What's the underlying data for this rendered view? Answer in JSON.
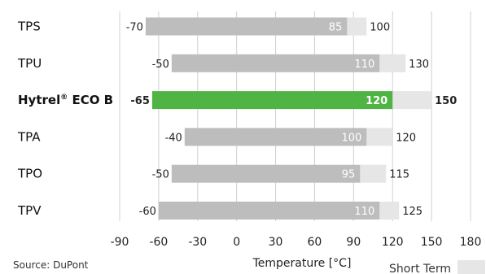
{
  "chart_data": {
    "type": "bar",
    "categories": [
      "TPS",
      "TPU",
      "Hytrel® ECO B",
      "TPA",
      "TPO",
      "TPV"
    ],
    "highlight": "Hytrel® ECO B",
    "series": [
      {
        "values_min": [
          -70,
          -50,
          -65,
          -40,
          -50,
          -60
        ]
      },
      {
        "values_max_long": [
          85,
          110,
          120,
          100,
          95,
          110
        ]
      },
      {
        "name": "Short Term",
        "values_max_short": [
          100,
          130,
          150,
          120,
          115,
          125
        ]
      }
    ],
    "xlabel": "Temperature [°C]",
    "xlim": [
      -90,
      180
    ],
    "xticks": [
      -90,
      -60,
      -30,
      0,
      30,
      60,
      90,
      120,
      150,
      180
    ],
    "grid": true,
    "legend": "bottom-right",
    "source": "Source: DuPont",
    "colors": {
      "bar": "#bdbdbd",
      "short_term": "#e6e6e6",
      "highlight": "#4fb443",
      "grid": "#d0d0d0",
      "text": "#222222",
      "bar_label": "#ffffff"
    }
  }
}
